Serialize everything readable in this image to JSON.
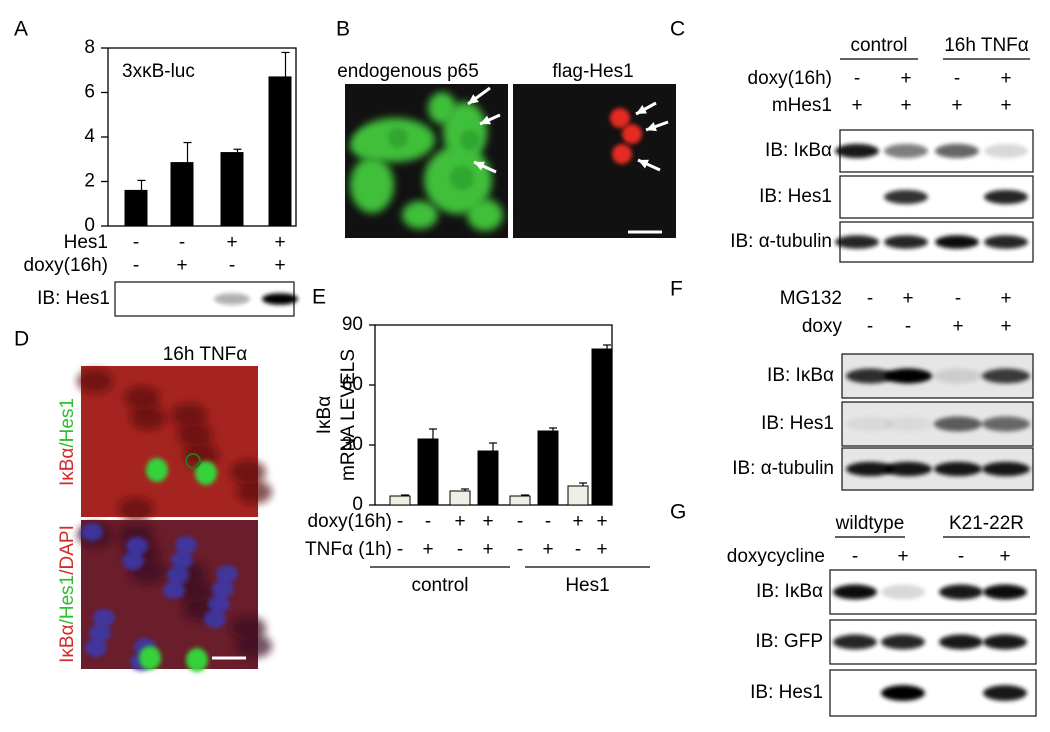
{
  "chart_data": [
    {
      "type": "bar",
      "panel": "A",
      "title": "3xκB-luc",
      "categories": [
        null,
        null,
        null,
        null
      ],
      "values": [
        1.6,
        2.85,
        3.3,
        6.7
      ],
      "errors": [
        0.45,
        0.9,
        0.15,
        1.1
      ],
      "color": "#000000",
      "ylim": [
        0,
        8
      ],
      "yticks": [
        0,
        2,
        4,
        6,
        8
      ],
      "conditions": [
        {
          "name": "Hes1",
          "signs": [
            "-",
            "-",
            "+",
            "+"
          ]
        },
        {
          "name": "doxy(16h)",
          "signs": [
            "-",
            "+",
            "-",
            "+"
          ]
        }
      ],
      "blot": "IB: Hes1"
    },
    {
      "type": "bar",
      "panel": "E",
      "ylabel": [
        "IκBα",
        "mRNA LEVELS"
      ],
      "categories": [
        null,
        null,
        null,
        null,
        null,
        null,
        null,
        null
      ],
      "values": [
        4.5,
        33,
        7,
        27,
        4.5,
        37,
        9.5,
        78
      ],
      "errors": [
        0.5,
        5,
        1,
        4,
        0.5,
        1.5,
        1.5,
        2
      ],
      "colors": [
        "#efefe6",
        "#000000",
        "#efefe6",
        "#000000",
        "#efefe6",
        "#000000",
        "#efefe6",
        "#000000"
      ],
      "ylim": [
        0,
        90
      ],
      "yticks": [
        0,
        30,
        60,
        90
      ],
      "conditions": [
        {
          "name": "doxy(16h)",
          "signs": [
            "-",
            "-",
            "+",
            "+",
            "-",
            "-",
            "+",
            "+"
          ]
        },
        {
          "name": "TNFα (1h)",
          "signs": [
            "-",
            "+",
            "-",
            "+",
            "-",
            "+",
            "-",
            "+"
          ]
        }
      ],
      "groups": [
        "control",
        "Hes1"
      ]
    }
  ],
  "panel_B": {
    "label": "B",
    "captions": [
      "endogenous p65",
      "flag-Hes1"
    ]
  },
  "panel_C": {
    "label": "C",
    "groups": [
      "control",
      "16h TNFα"
    ],
    "conditions": [
      {
        "name": "doxy(16h)",
        "signs": [
          "-",
          "+",
          "-",
          "+"
        ]
      },
      {
        "name": "mHes1",
        "signs": [
          "+",
          "+",
          "+",
          "+"
        ]
      }
    ],
    "blots": [
      "IB: IκBα",
      "IB: Hes1",
      "IB: α-tubulin"
    ]
  },
  "panel_D": {
    "label": "D",
    "title": "16h TNFα",
    "stain_labels": [
      [
        "IκBα",
        "/Hes1"
      ],
      [
        "IκBα",
        "/Hes1",
        "/DAPI"
      ]
    ]
  },
  "panel_F": {
    "label": "F",
    "conditions": [
      {
        "name": "MG132",
        "signs": [
          "-",
          "+",
          "-",
          "+"
        ]
      },
      {
        "name": "doxy",
        "signs": [
          "-",
          "-",
          "+",
          "+"
        ]
      }
    ],
    "blots": [
      "IB: IκBα",
      "IB: Hes1",
      "IB: α-tubulin"
    ]
  },
  "panel_G": {
    "label": "G",
    "groups": [
      "wildtype",
      "K21-22R"
    ],
    "conditions": [
      {
        "name": "doxycycline",
        "signs": [
          "-",
          "+",
          "-",
          "+"
        ]
      }
    ],
    "blots": [
      "IB: IκBα",
      "IB: GFP",
      "IB: Hes1"
    ]
  }
}
